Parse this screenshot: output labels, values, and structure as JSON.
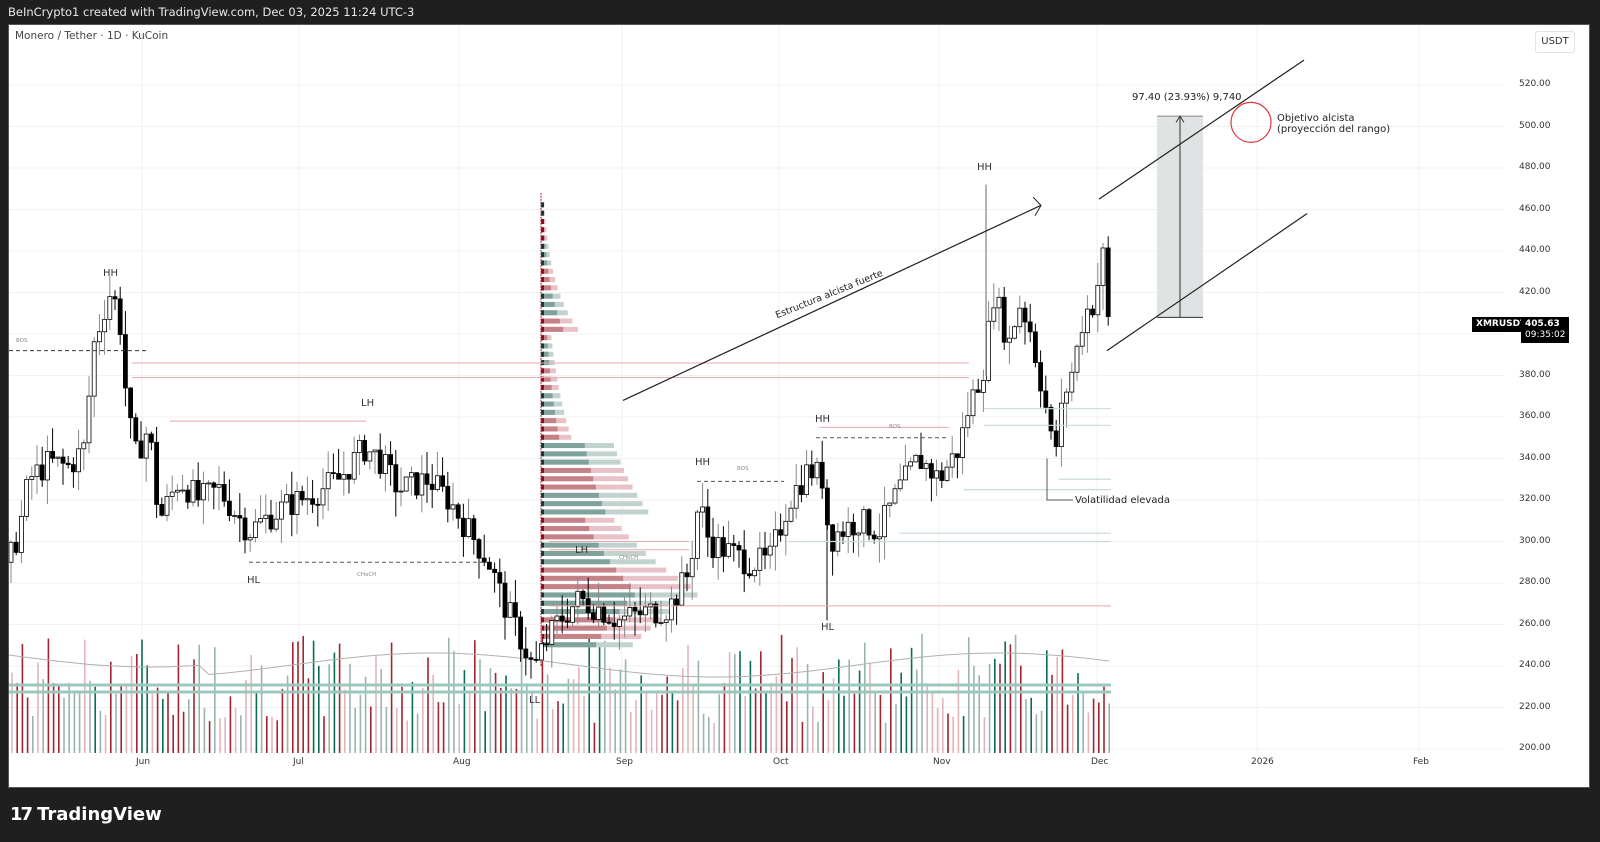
{
  "header": {
    "attribution": "BeInCrypto1 created with TradingView.com, Dec 03, 2025 11:24 UTC-3"
  },
  "chart": {
    "symbol_title": "Monero / Tether · 1D · KuCoin",
    "currency": "USDT",
    "ticker": "XMRUSDT",
    "last_price": "405.63",
    "countdown": "09:35:02"
  },
  "price_axis": {
    "ticks": [
      "520.00",
      "500.00",
      "480.00",
      "460.00",
      "440.00",
      "420.00",
      "380.00",
      "360.00",
      "340.00",
      "320.00",
      "300.00",
      "280.00",
      "260.00",
      "240.00",
      "220.00",
      "200.00"
    ]
  },
  "time_axis": {
    "ticks": [
      "Jun",
      "Jul",
      "Aug",
      "Sep",
      "Oct",
      "Nov",
      "Dec",
      "2026",
      "Feb"
    ]
  },
  "annotations": {
    "measure": "97.40 (23.93%) 9,740",
    "target_line1": "Objetivo alcista",
    "target_line2": "(proyección del rango)",
    "trend_label": "Estructura alcista fuerte",
    "volatility": "Volatilidad elevada",
    "structure": {
      "hh1": "HH",
      "hl1": "HL",
      "lh1": "LH",
      "ll1": "LL",
      "lh2": "LH",
      "hh2": "HH",
      "hh3": "HH",
      "hl2": "HL",
      "hh4": "HH"
    },
    "bos": "BOS",
    "choch": "CHoCH"
  },
  "footer": {
    "brand": "TradingView",
    "logo_mark": "17"
  },
  "colors": {
    "up": "#ffffff",
    "down": "#000000",
    "vol_up": "#0b6b54",
    "vol_down": "#a3242f",
    "target_circle": "#e0363f",
    "measure_box": "#dfe3e3"
  },
  "chart_data": {
    "type": "candlestick",
    "title": "Monero / Tether · 1D · KuCoin",
    "xlabel": "",
    "ylabel": "USDT",
    "ylim": [
      200,
      530
    ],
    "x_ticks": [
      "Jun",
      "Jul",
      "Aug",
      "Sep",
      "Oct",
      "Nov",
      "Dec",
      "2026",
      "Feb"
    ],
    "last_price": 405.63,
    "key_levels": {
      "swing_high_may": 420,
      "lh_july": 358,
      "ll_august": 235,
      "hl_october": 262,
      "hh_november": 472,
      "recent_high": 440,
      "target_range_low": 408,
      "target_range_high": 505
    },
    "measure": {
      "change": 97.4,
      "percent": 23.93,
      "ticks": 9740
    },
    "approx_closes_by_month": [
      {
        "month": "May (late)",
        "close": 400
      },
      {
        "month": "Jun",
        "close": 330
      },
      {
        "month": "Jul",
        "close": 330
      },
      {
        "month": "Aug",
        "close": 255
      },
      {
        "month": "Sep",
        "close": 300
      },
      {
        "month": "Oct",
        "close": 310
      },
      {
        "month": "Nov",
        "close": 390
      },
      {
        "month": "Dec (early)",
        "close": 405.63
      }
    ],
    "grid": true,
    "legend": "none"
  }
}
